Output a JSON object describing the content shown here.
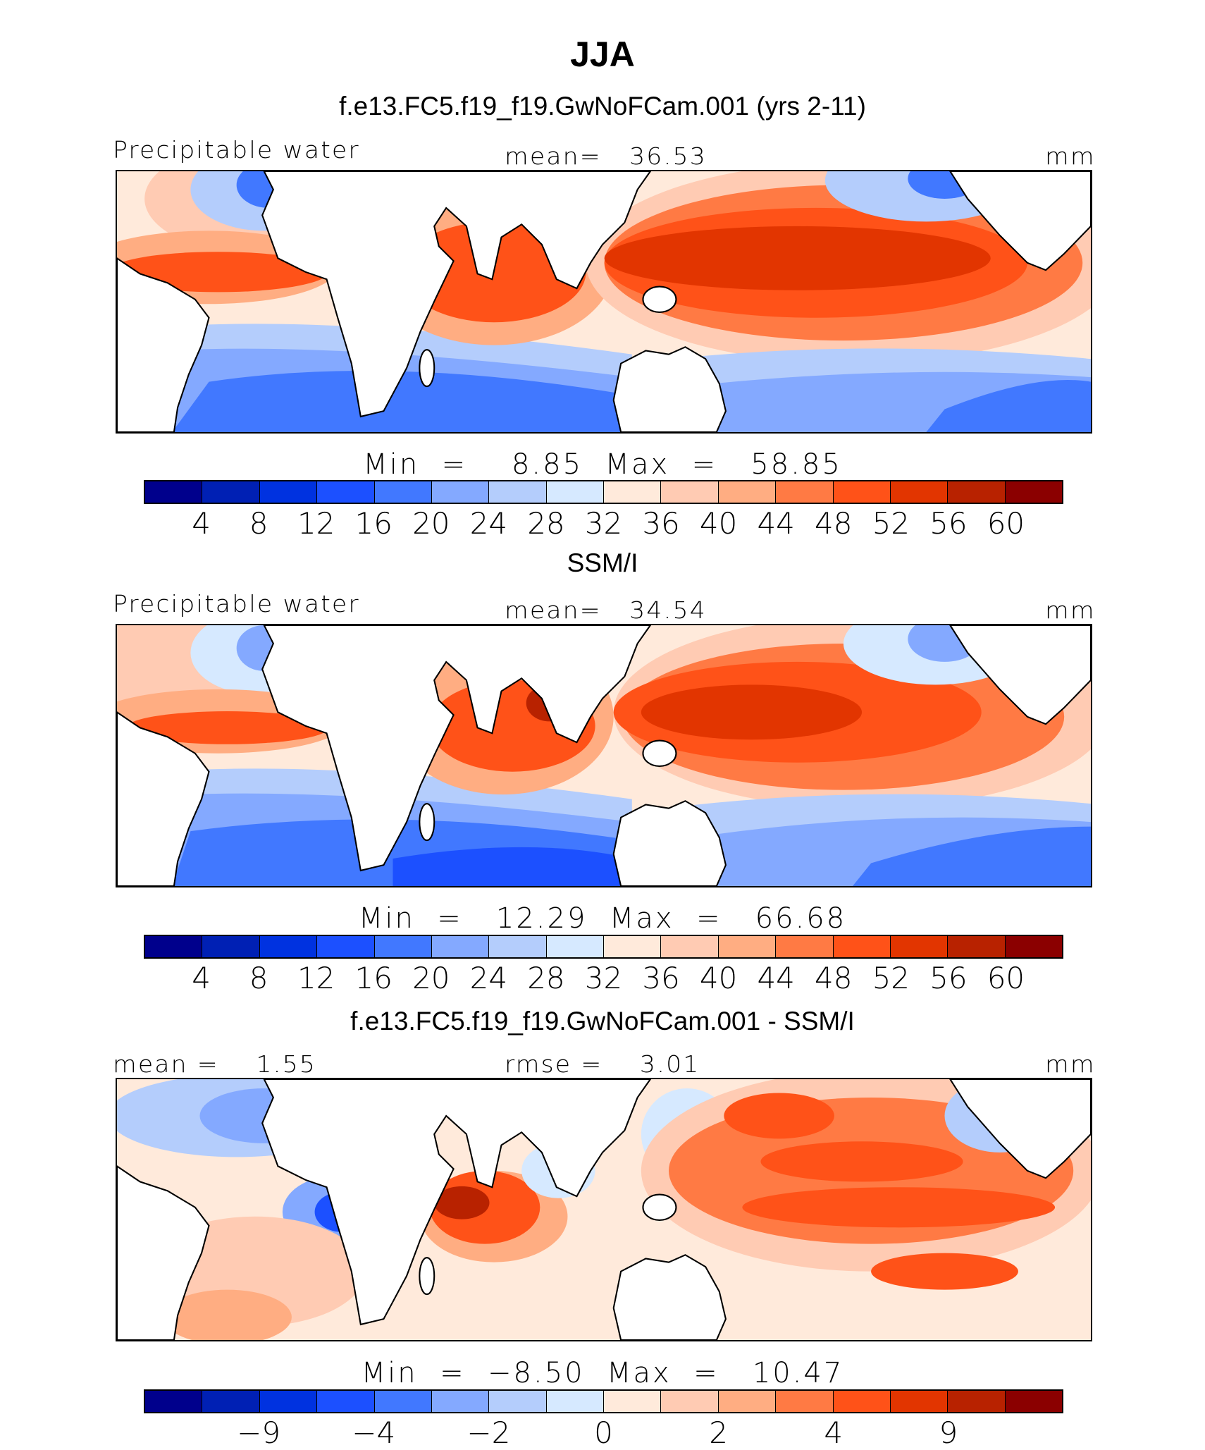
{
  "title": "JJA",
  "chart_data": {
    "type": "heatmap",
    "title": "JJA",
    "panels": [
      {
        "title": "f.e13.FC5.f19_f19.GwNoFCam.001 (yrs 2-11)",
        "left_label": "Precipitable water",
        "center_label": "mean=   36.53",
        "units": "mm",
        "min_max": "Min  =    8.85  Max  =   58.85",
        "stats": {
          "mean": 36.53,
          "min": 8.85,
          "max": 58.85
        },
        "colorbar": {
          "labels": [
            "4",
            "8",
            "12",
            "16",
            "20",
            "24",
            "28",
            "32",
            "36",
            "40",
            "44",
            "48",
            "52",
            "56",
            "60"
          ],
          "label_boundaries": [
            1,
            2,
            3,
            4,
            5,
            6,
            7,
            8,
            9,
            10,
            11,
            12,
            13,
            14,
            15
          ]
        }
      },
      {
        "title": "SSM/I",
        "left_label": "Precipitable water",
        "center_label": "mean=   34.54",
        "units": "mm",
        "min_max": "Min  =   12.29  Max  =   66.68",
        "stats": {
          "mean": 34.54,
          "min": 12.29,
          "max": 66.68
        },
        "colorbar": {
          "labels": [
            "4",
            "8",
            "12",
            "16",
            "20",
            "24",
            "28",
            "32",
            "36",
            "40",
            "44",
            "48",
            "52",
            "56",
            "60"
          ],
          "label_boundaries": [
            1,
            2,
            3,
            4,
            5,
            6,
            7,
            8,
            9,
            10,
            11,
            12,
            13,
            14,
            15
          ]
        }
      },
      {
        "title": "f.e13.FC5.f19_f19.GwNoFCam.001 - SSM/I",
        "left_label": "mean =    1.55",
        "center_label": "rmse =    3.01",
        "units": "mm",
        "min_max": "Min  =  −8.50  Max  =   10.47",
        "stats": {
          "mean": 1.55,
          "rmse": 3.01,
          "min": -8.5,
          "max": 10.47
        },
        "colorbar": {
          "labels": [
            "−9",
            "−4",
            "−2",
            "0",
            "2",
            "4",
            "9"
          ],
          "label_boundaries": [
            2,
            4,
            6,
            8,
            10,
            12,
            14
          ]
        }
      }
    ],
    "palette": [
      "#00008c",
      "#0020b4",
      "#0032e0",
      "#1c50ff",
      "#4178ff",
      "#84a9ff",
      "#b4cdfc",
      "#d6e9ff",
      "#ffeadb",
      "#ffcbb3",
      "#ffad82",
      "#ff7a44",
      "#ff5218",
      "#e23500",
      "#b82200",
      "#8b0000"
    ]
  }
}
